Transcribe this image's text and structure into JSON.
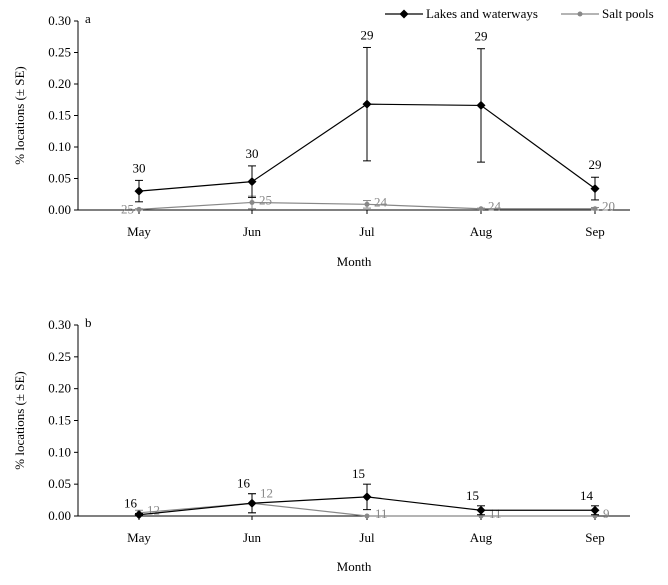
{
  "legend": {
    "entries": [
      {
        "name": "Lakes and waterways",
        "color": "#000000",
        "marker": "diamond"
      },
      {
        "name": "Salt pools",
        "color": "#888888",
        "marker": "circle"
      }
    ]
  },
  "chart_data": [
    {
      "type": "line",
      "panel_label": "a",
      "xlabel": "Month",
      "ylabel": "% locations (± SE)",
      "ylim": [
        0,
        0.3
      ],
      "yticks": [
        "0.00",
        "0.05",
        "0.10",
        "0.15",
        "0.20",
        "0.25",
        "0.30"
      ],
      "categories": [
        "May",
        "Jun",
        "Jul",
        "Aug",
        "Sep"
      ],
      "legend_position": "top-right",
      "grid": false,
      "series": [
        {
          "name": "Lakes and waterways",
          "color": "#000000",
          "values": [
            0.03,
            0.045,
            0.168,
            0.166,
            0.034
          ],
          "se": [
            0.017,
            0.025,
            0.09,
            0.09,
            0.018
          ],
          "n": [
            "30",
            "30",
            "29",
            "29",
            "29"
          ]
        },
        {
          "name": "Salt pools",
          "color": "#888888",
          "values": [
            0.001,
            0.012,
            0.009,
            0.002,
            0.002
          ],
          "se": [
            0.001,
            0.01,
            0.006,
            0.001,
            0.002
          ],
          "n": [
            "25",
            "25",
            "24",
            "24",
            "20"
          ]
        }
      ]
    },
    {
      "type": "line",
      "panel_label": "b",
      "xlabel": "Month",
      "ylabel": "% locations (± SE)",
      "ylim": [
        0,
        0.3
      ],
      "yticks": [
        "0.00",
        "0.05",
        "0.10",
        "0.15",
        "0.20",
        "0.25",
        "0.30"
      ],
      "categories": [
        "May",
        "Jun",
        "Jul",
        "Aug",
        "Sep"
      ],
      "grid": false,
      "series": [
        {
          "name": "Lakes and waterways",
          "color": "#000000",
          "values": [
            0.002,
            0.02,
            0.03,
            0.009,
            0.009
          ],
          "se": [
            0.002,
            0.015,
            0.02,
            0.007,
            0.007
          ],
          "n": [
            "16",
            "16",
            "15",
            "15",
            "14"
          ]
        },
        {
          "name": "Salt pools",
          "color": "#888888",
          "values": [
            0.005,
            0.02,
            0.0,
            0.0,
            0.0
          ],
          "se": [
            0.004,
            0.015,
            0.0,
            0.0,
            0.0
          ],
          "n": [
            "12",
            "12",
            "11",
            "11",
            "9"
          ]
        }
      ]
    }
  ]
}
